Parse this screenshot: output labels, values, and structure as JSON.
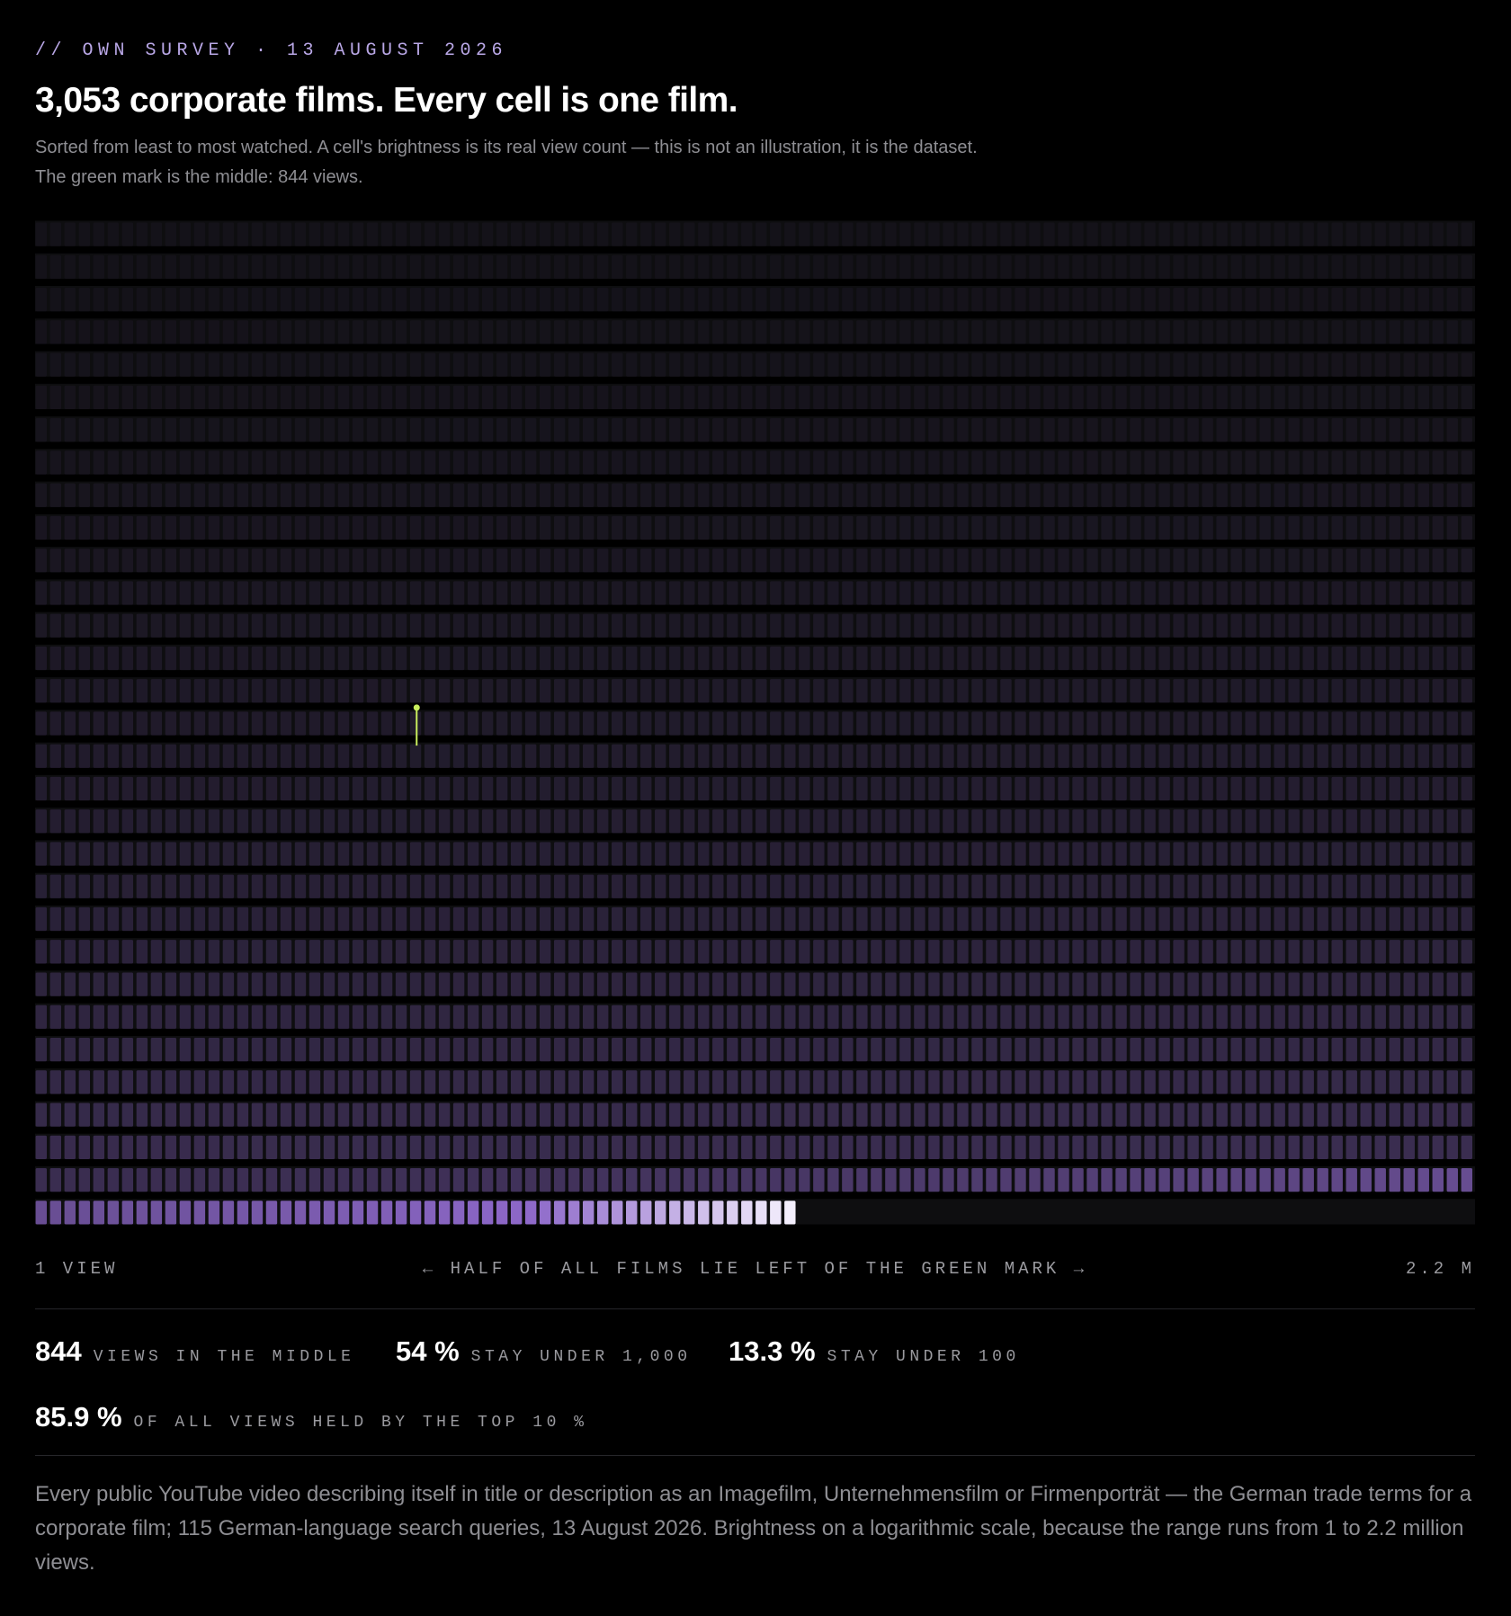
{
  "header": {
    "eyebrow": "// OWN SURVEY · 13 AUGUST 2026",
    "title": "3,053 corporate films. Every cell is one film.",
    "subtitle_line1": "Sorted from least to most watched. A cell's brightness is its real view count — this is not an illustration, it is the dataset.",
    "subtitle_line2": "The green mark is the middle: 844 views."
  },
  "axis": {
    "left": "1 view",
    "middle": "← half of all films lie left of the green mark →",
    "right": "2.2 M"
  },
  "stats": [
    {
      "value": "844",
      "label": "views in the middle"
    },
    {
      "value": "54 %",
      "label": "stay under 1,000"
    },
    {
      "value": "13.3 %",
      "label": "stay under 100"
    },
    {
      "value": "85.9 %",
      "label": "of all views held by the top 10 %"
    }
  ],
  "note": "Every public YouTube video describing itself in title or description as an Imagefilm, Unternehmensfilm or Firmenporträt — the German trade terms for a corporate film; 115 German-language search queries, 13 August 2026. Brightness on a logarithmic scale, because the range runs from 1 to 2.2 million views.",
  "chart_data": {
    "type": "heatmap",
    "count": 3053,
    "columns": 100,
    "order": "ascending views",
    "min_views": 1,
    "max_views": 2200000,
    "median_views": 844,
    "median_rank": 1527,
    "share_under_100": 0.133,
    "share_under_1000": 0.54,
    "top10_share_of_views": 0.859,
    "scale": "log",
    "colors": {
      "background": "#000000",
      "cell_low": "#141219",
      "cell_high": "#8d68c9",
      "cell_top": "#f4effd",
      "median_mark": "#c9ee5e",
      "empty_row": "#0e0e10"
    }
  }
}
